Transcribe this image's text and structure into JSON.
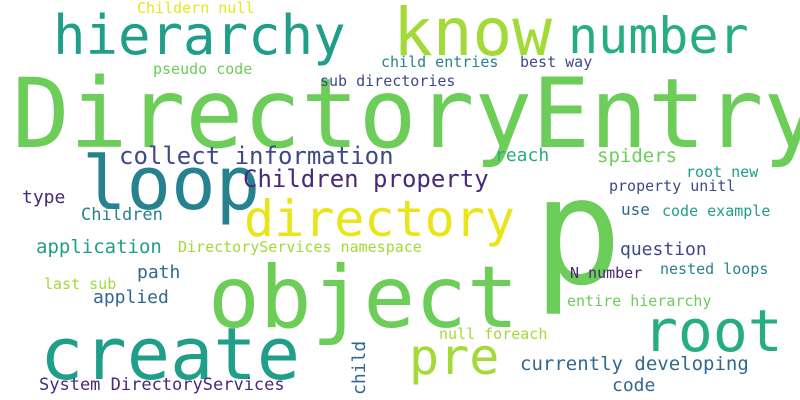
{
  "palette": {
    "light_green": "#a2da37",
    "green": "#6ccd59",
    "sea_green": "#26ad81",
    "teal": "#1f9e89",
    "blue_teal": "#26828e",
    "steel_blue": "#31688e",
    "indigo": "#3e4989",
    "deep_purple": "#482878",
    "yellow": "#e9e51a"
  },
  "words": [
    "DirectoryEntry",
    "p",
    "object",
    "loop",
    "create",
    "know",
    "root",
    "hierarchy",
    "number",
    "directory",
    "pre",
    "Children property",
    "collect information",
    "currently developing",
    "spiders",
    "reach",
    "question",
    "Childern null",
    "child entries",
    "best way",
    "pseudo code",
    "sub directories",
    "root new",
    "property unitl",
    "type",
    "Children",
    "use",
    "code example",
    "application",
    "DirectoryServices namespace",
    "path",
    "N number",
    "nested loops",
    "last sub",
    "applied",
    "entire hierarchy",
    "null foreach",
    "child",
    "System DirectoryServices",
    "code"
  ]
}
